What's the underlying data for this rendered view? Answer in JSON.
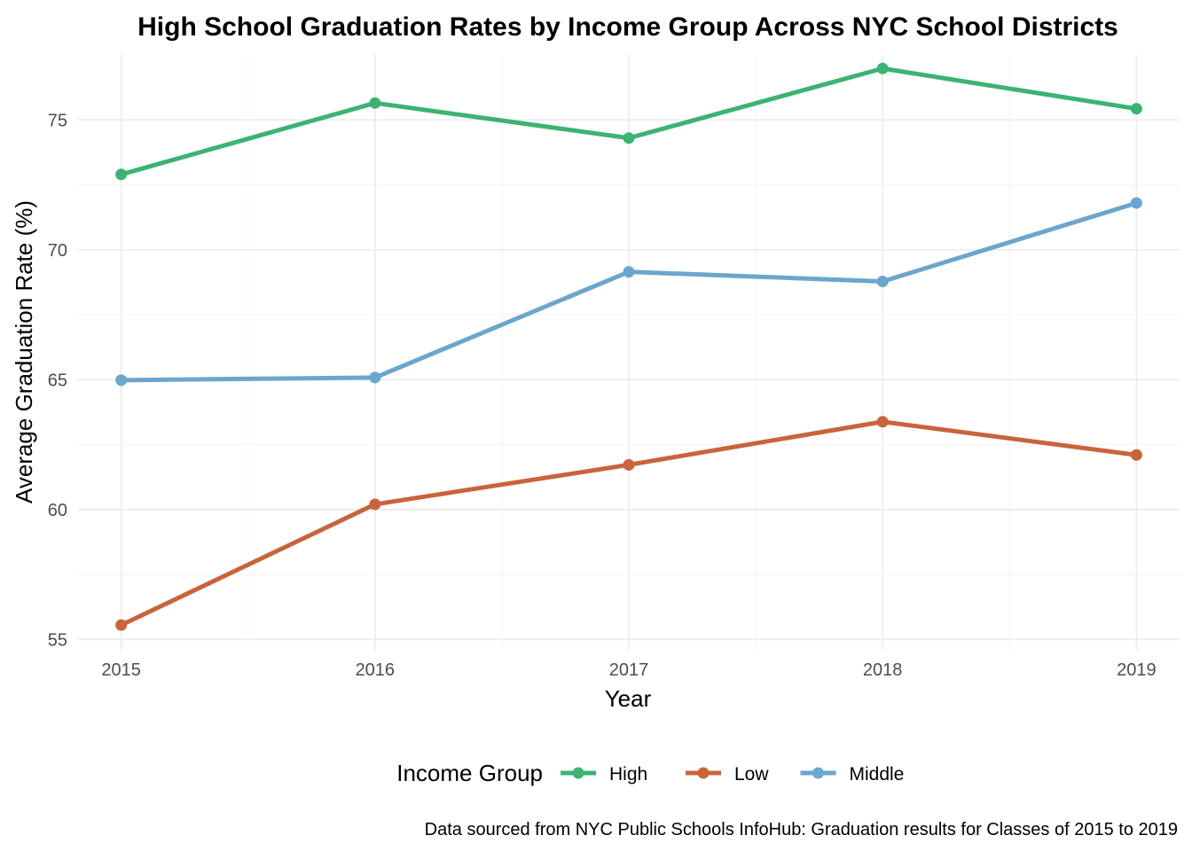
{
  "chart_data": {
    "type": "line",
    "title": "High School Graduation Rates by Income Group Across NYC School Districts",
    "xlabel": "Year",
    "ylabel": "Average Graduation Rate (%)",
    "caption": "Data sourced from NYC Public Schools InfoHub: Graduation results for Classes of 2015 to 2019",
    "x": [
      2015,
      2016,
      2017,
      2018,
      2019
    ],
    "x_tick_labels": [
      "2015",
      "2016",
      "2017",
      "2018",
      "2019"
    ],
    "y_ticks": [
      55,
      60,
      65,
      70,
      75
    ],
    "y_tick_labels": [
      "55",
      "60",
      "65",
      "70",
      "75"
    ],
    "xlim": [
      2014.83,
      2019.17
    ],
    "ylim": [
      54.6,
      77.5
    ],
    "grid": true,
    "legend": {
      "title": "Income Group",
      "placement": "bottom"
    },
    "series": [
      {
        "name": "High",
        "color": "#3cb371",
        "values": [
          72.9,
          75.65,
          74.3,
          76.98,
          75.43
        ]
      },
      {
        "name": "Low",
        "color": "#c8643c",
        "values": [
          55.55,
          60.2,
          61.72,
          63.38,
          62.1
        ]
      },
      {
        "name": "Middle",
        "color": "#6ca6cd",
        "values": [
          64.98,
          65.08,
          69.15,
          68.78,
          71.8
        ]
      }
    ]
  }
}
